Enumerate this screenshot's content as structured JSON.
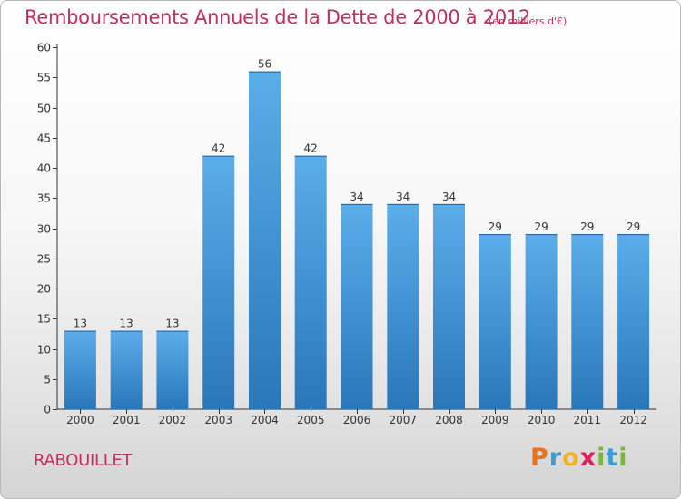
{
  "header": {
    "title": "Remboursements Annuels de la Dette de 2000 à 2012",
    "unit": "(en milliers d'€)"
  },
  "footer": {
    "commune": "RABOUILLET",
    "logo_letters": [
      "P",
      "r",
      "o",
      "x",
      "i",
      "t",
      "i"
    ]
  },
  "colors": {
    "title": "#c0305a",
    "bar_top": "#5aaeea",
    "bar_bottom": "#2a77b8",
    "logo": [
      "#e8731c",
      "#3d9bd8",
      "#f2b320",
      "#e0205c",
      "#7ab83a",
      "#3d9bd8",
      "#7ab83a"
    ]
  },
  "chart_data": {
    "type": "bar",
    "categories": [
      "2000",
      "2001",
      "2002",
      "2003",
      "2004",
      "2005",
      "2006",
      "2007",
      "2008",
      "2009",
      "2010",
      "2011",
      "2012"
    ],
    "values": [
      13,
      13,
      13,
      42,
      56,
      42,
      34,
      34,
      34,
      29,
      29,
      29,
      29
    ],
    "title": "Remboursements Annuels de la Dette de 2000 à 2012",
    "subtitle": "(en milliers d'€)",
    "ylim": [
      0,
      60
    ],
    "yticks": [
      0,
      5,
      10,
      15,
      20,
      25,
      30,
      35,
      40,
      45,
      50,
      55,
      60
    ],
    "grid": false,
    "data_labels": true
  }
}
